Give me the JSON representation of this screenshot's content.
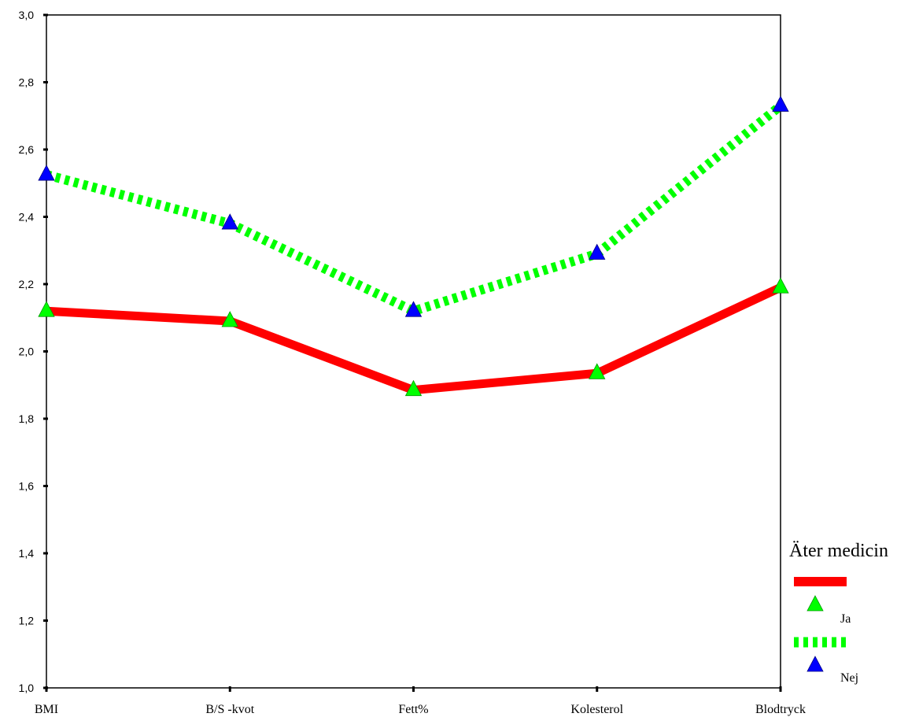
{
  "chart_data": {
    "type": "line",
    "categories": [
      "BMI",
      "B/S -kvot",
      "Fett%",
      "Kolesterol",
      "Blodtryck"
    ],
    "ylim": [
      1.0,
      3.0
    ],
    "yticks": [
      "1,0",
      "1,2",
      "1,4",
      "1,6",
      "1,8",
      "2,0",
      "2,2",
      "2,4",
      "2,6",
      "2,8",
      "3,0"
    ],
    "ytick_values": [
      1.0,
      1.2,
      1.4,
      1.6,
      1.8,
      2.0,
      2.2,
      2.4,
      2.6,
      2.8,
      3.0
    ],
    "grid": false,
    "legend": {
      "title": "Äter medicin",
      "placement": "right-bottom"
    },
    "series": [
      {
        "name": "Ja",
        "values": [
          2.12,
          2.09,
          1.885,
          1.935,
          2.19
        ],
        "line_color": "#ff0000",
        "line_style": "solid",
        "marker": "triangle",
        "marker_color": "#00ff00"
      },
      {
        "name": "Nej",
        "values": [
          2.525,
          2.38,
          2.12,
          2.29,
          2.73
        ],
        "line_color": "#00ff00",
        "line_style": "dotted",
        "marker": "triangle",
        "marker_color": "#0000ff"
      }
    ]
  }
}
